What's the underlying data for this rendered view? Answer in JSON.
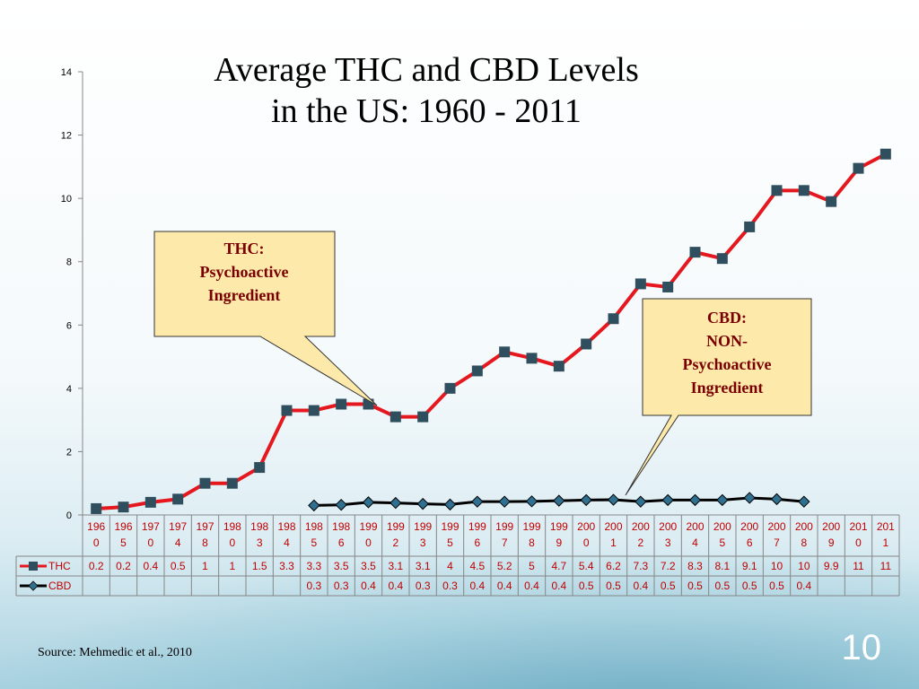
{
  "slide": {
    "title_line1": "Average THC and CBD Levels",
    "title_line2": "in the US: 1960 - 2011",
    "source": "Source: Mehmedic et al., 2010",
    "page_number": "10"
  },
  "callouts": {
    "thc": [
      "THC:",
      "Psychoactive",
      "Ingredient"
    ],
    "cbd": [
      "CBD:",
      "NON-",
      "Psychoactive",
      "Ingredient"
    ]
  },
  "colors": {
    "thc_line": "#e4181e",
    "marker": "#2f4f5f",
    "cbd_line": "#000000",
    "callout_fill": "#fde9a9",
    "callout_text": "#7a0000"
  },
  "chart_data": {
    "type": "line",
    "xlabel": "",
    "ylabel": "",
    "ylim": [
      0,
      14
    ],
    "yticks": [
      "0",
      "2",
      "4",
      "6",
      "8",
      "10",
      "12",
      "14"
    ],
    "grid": false,
    "legend": "left of data table",
    "categories": [
      "1960",
      "1965",
      "1970",
      "1974",
      "1978",
      "1980",
      "1983",
      "1984",
      "1985",
      "1986",
      "1990",
      "1992",
      "1993",
      "1995",
      "1996",
      "1997",
      "1998",
      "1999",
      "2000",
      "2001",
      "2002",
      "2003",
      "2004",
      "2005",
      "2006",
      "2007",
      "2008",
      "2009",
      "2010",
      "2011"
    ],
    "category_labels": [
      [
        "196",
        "0"
      ],
      [
        "196",
        "5"
      ],
      [
        "197",
        "0"
      ],
      [
        "197",
        "4"
      ],
      [
        "197",
        "8"
      ],
      [
        "198",
        "0"
      ],
      [
        "198",
        "3"
      ],
      [
        "198",
        "4"
      ],
      [
        "198",
        "5"
      ],
      [
        "198",
        "6"
      ],
      [
        "199",
        "0"
      ],
      [
        "199",
        "2"
      ],
      [
        "199",
        "3"
      ],
      [
        "199",
        "5"
      ],
      [
        "199",
        "6"
      ],
      [
        "199",
        "7"
      ],
      [
        "199",
        "8"
      ],
      [
        "199",
        "9"
      ],
      [
        "200",
        "0"
      ],
      [
        "200",
        "1"
      ],
      [
        "200",
        "2"
      ],
      [
        "200",
        "3"
      ],
      [
        "200",
        "4"
      ],
      [
        "200",
        "5"
      ],
      [
        "200",
        "6"
      ],
      [
        "200",
        "7"
      ],
      [
        "200",
        "8"
      ],
      [
        "200",
        "9"
      ],
      [
        "201",
        "0"
      ],
      [
        "201",
        "1"
      ]
    ],
    "series": [
      {
        "name": "THC",
        "values": [
          0.2,
          0.25,
          0.4,
          0.5,
          1.0,
          1.0,
          1.5,
          3.3,
          3.3,
          3.5,
          3.5,
          3.1,
          3.1,
          4.0,
          4.55,
          5.15,
          4.95,
          4.7,
          5.4,
          6.2,
          7.3,
          7.2,
          8.3,
          8.1,
          9.1,
          10.25,
          10.25,
          9.9,
          10.95,
          11.4
        ],
        "table_labels": [
          "0.2",
          "0.2",
          "0.4",
          "0.5",
          "1",
          "1",
          "1.5",
          "3.3",
          "3.3",
          "3.5",
          "3.5",
          "3.1",
          "3.1",
          "4",
          "4.5",
          "5.2",
          "5",
          "4.7",
          "5.4",
          "6.2",
          "7.3",
          "7.2",
          "8.3",
          "8.1",
          "9.1",
          "10",
          "10",
          "9.9",
          "11",
          "11"
        ]
      },
      {
        "name": "CBD",
        "values": [
          null,
          null,
          null,
          null,
          null,
          null,
          null,
          null,
          0.3,
          0.32,
          0.4,
          0.38,
          0.35,
          0.33,
          0.42,
          0.42,
          0.43,
          0.45,
          0.47,
          0.48,
          0.42,
          0.47,
          0.47,
          0.47,
          0.54,
          0.5,
          0.42,
          null,
          null,
          null
        ],
        "table_labels": [
          "",
          "",
          "",
          "",
          "",
          "",
          "",
          "",
          "0.3",
          "0.3",
          "0.4",
          "0.4",
          "0.3",
          "0.3",
          "0.4",
          "0.4",
          "0.4",
          "0.4",
          "0.5",
          "0.5",
          "0.4",
          "0.5",
          "0.5",
          "0.5",
          "0.5",
          "0.5",
          "0.4",
          "",
          "",
          ""
        ]
      }
    ]
  }
}
